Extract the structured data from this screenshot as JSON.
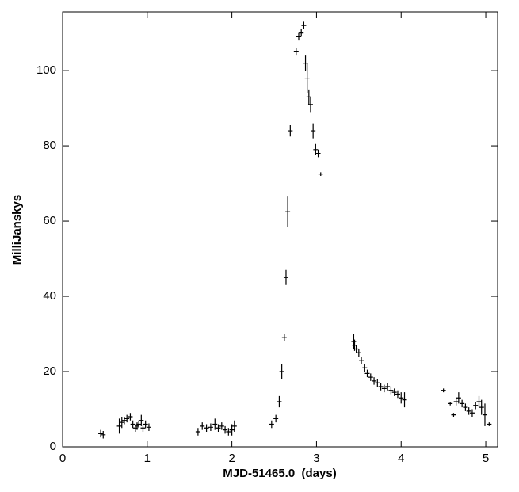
{
  "chart_data": {
    "type": "scatter",
    "xlabel": "MJD-51465.0  (days)",
    "ylabel": "MilliJanskys",
    "xlim": [
      0,
      5.14
    ],
    "ylim": [
      0,
      115.6
    ],
    "xticks": [
      0,
      1,
      2,
      3,
      4,
      5
    ],
    "yticks": [
      0,
      20,
      40,
      60,
      80,
      100
    ],
    "color": "#000000",
    "x": [
      0.45,
      0.48,
      0.67,
      0.7,
      0.73,
      0.76,
      0.8,
      0.83,
      0.86,
      0.88,
      0.9,
      0.93,
      0.95,
      0.98,
      1.02,
      1.6,
      1.65,
      1.7,
      1.75,
      1.8,
      1.84,
      1.88,
      1.92,
      1.96,
      2.0,
      2.03,
      2.47,
      2.52,
      2.56,
      2.59,
      2.62,
      2.64,
      2.66,
      2.69,
      2.76,
      2.79,
      2.82,
      2.85,
      2.87,
      2.89,
      2.91,
      2.93,
      2.96,
      2.99,
      3.02,
      3.05,
      3.44,
      3.45,
      3.47,
      3.5,
      3.53,
      3.57,
      3.6,
      3.64,
      3.68,
      3.72,
      3.76,
      3.8,
      3.84,
      3.88,
      3.92,
      3.96,
      4.0,
      4.04,
      4.5,
      4.58,
      4.62,
      4.65,
      4.68,
      4.72,
      4.76,
      4.8,
      4.84,
      4.88,
      4.92,
      4.95,
      4.99,
      5.04
    ],
    "values": [
      3.5,
      3.2,
      5.5,
      6.5,
      7,
      7.5,
      8,
      6,
      5,
      5.5,
      6,
      7,
      5,
      6,
      5.2,
      4,
      5.5,
      5,
      5.2,
      6,
      5,
      5.5,
      4.5,
      4,
      4.5,
      5.5,
      6,
      7.5,
      12,
      20,
      29,
      45,
      62.5,
      84,
      105,
      109,
      110,
      112,
      102,
      98,
      93,
      91,
      84,
      79,
      78,
      72.5,
      28,
      27,
      26,
      25,
      23,
      21,
      19.5,
      18.5,
      17.5,
      17,
      16,
      15.5,
      16,
      15,
      14.5,
      14,
      13,
      12.5,
      15,
      11.5,
      8.5,
      12,
      13,
      11.5,
      10.5,
      9.5,
      9,
      11,
      12,
      10.5,
      8.5,
      6
    ],
    "errors": [
      1,
      1,
      2,
      1.5,
      1,
      1,
      1,
      1,
      1,
      1,
      1,
      1.5,
      1,
      1,
      1,
      1,
      1,
      1,
      1,
      1.5,
      1,
      1,
      1,
      1,
      1.5,
      1.5,
      1,
      1,
      1.5,
      2,
      1,
      2,
      4,
      1.5,
      1,
      1,
      1,
      1,
      2,
      4,
      2,
      2,
      2,
      1.5,
      1,
      0.5,
      2,
      1.5,
      1,
      1,
      1,
      1,
      1,
      1,
      1,
      1,
      1,
      1,
      1,
      1,
      1,
      1,
      1.5,
      2,
      0.5,
      0.5,
      0.5,
      1,
      1.5,
      1,
      1,
      1,
      1,
      1,
      1.5,
      2,
      3,
      0.5
    ]
  }
}
